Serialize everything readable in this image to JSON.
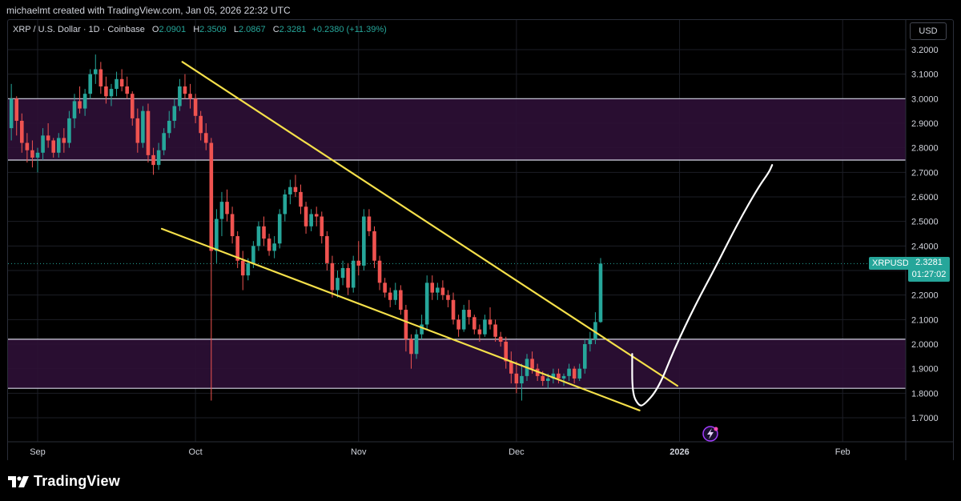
{
  "header": {
    "credit": "michaelmt created with TradingView.com, Jan 05, 2026 22:32 UTC"
  },
  "legend": {
    "symbol": "XRP / U.S. Dollar · 1D · Coinbase",
    "open_label": "O",
    "open": "2.0901",
    "high_label": "H",
    "high": "2.3509",
    "low_label": "L",
    "low": "2.0867",
    "close_label": "C",
    "close": "2.3281",
    "change": "+0.2380 (+11.39%)"
  },
  "price_scale": {
    "currency": "USD"
  },
  "last_price": {
    "ticker": "XRPUSD",
    "price": "2.3281",
    "countdown": "01:27:02"
  },
  "footer": {
    "brand": "TradingView"
  },
  "colors": {
    "up": "#26a69a",
    "down": "#ef5350",
    "trendline": "#f5e04a",
    "zone": "#2d0f36",
    "zone_line": "#d6d6e6",
    "drawing": "#ffffff",
    "grid": "#1c1e26"
  },
  "icons": {
    "brand": "tradingview-logo-icon",
    "event": "lightning-event-icon"
  },
  "chart_data": {
    "type": "candlestick",
    "title": "XRP / U.S. Dollar · 1D · Coinbase",
    "ylim": [
      1.64,
      3.24
    ],
    "y_ticks": [
      "3.2000",
      "3.1000",
      "3.0000",
      "2.9000",
      "2.8000",
      "2.7000",
      "2.6000",
      "2.5000",
      "2.4000",
      "2.3000",
      "2.2000",
      "2.1000",
      "2.0000",
      "1.9000",
      "1.8000",
      "1.7000"
    ],
    "x_labels": [
      {
        "label": "Sep",
        "day": 0
      },
      {
        "label": "Oct",
        "day": 30
      },
      {
        "label": "Nov",
        "day": 61
      },
      {
        "label": "Dec",
        "day": 91
      },
      {
        "label": "2026",
        "day": 122,
        "bold": true
      },
      {
        "label": "Feb",
        "day": 153
      }
    ],
    "zones": [
      [
        2.75,
        3.0
      ],
      [
        1.82,
        2.02
      ]
    ],
    "trendlines": [
      {
        "from": [
          27.5,
          3.15
        ],
        "to": [
          121.6,
          1.83
        ]
      },
      {
        "from": [
          23.6,
          2.47
        ],
        "to": [
          114.4,
          1.73
        ]
      }
    ],
    "projection": [
      [
        113.0,
        1.96
      ],
      [
        113.0,
        1.8
      ],
      [
        114.2,
        1.75
      ],
      [
        115.2,
        1.75
      ],
      [
        118.0,
        1.82
      ],
      [
        121.0,
        1.98
      ],
      [
        125.0,
        2.16
      ],
      [
        129.0,
        2.32
      ],
      [
        133.0,
        2.49
      ],
      [
        137.0,
        2.64
      ],
      [
        139.0,
        2.7
      ],
      [
        139.6,
        2.73
      ]
    ],
    "grid": true,
    "candles": [
      {
        "o": 2.95,
        "h": 3.03,
        "l": 2.75,
        "c": 2.88
      },
      {
        "o": 2.88,
        "h": 3.06,
        "l": 2.83,
        "c": 3.0
      },
      {
        "o": 3.0,
        "h": 3.01,
        "l": 2.85,
        "c": 2.91
      },
      {
        "o": 2.91,
        "h": 2.94,
        "l": 2.78,
        "c": 2.82
      },
      {
        "o": 2.82,
        "h": 2.86,
        "l": 2.74,
        "c": 2.79
      },
      {
        "o": 2.79,
        "h": 2.83,
        "l": 2.72,
        "c": 2.76
      },
      {
        "o": 2.76,
        "h": 2.8,
        "l": 2.7,
        "c": 2.78
      },
      {
        "o": 2.78,
        "h": 2.88,
        "l": 2.75,
        "c": 2.85
      },
      {
        "o": 2.85,
        "h": 2.9,
        "l": 2.8,
        "c": 2.83
      },
      {
        "o": 2.83,
        "h": 2.84,
        "l": 2.76,
        "c": 2.78
      },
      {
        "o": 2.78,
        "h": 2.86,
        "l": 2.76,
        "c": 2.84
      },
      {
        "o": 2.84,
        "h": 2.88,
        "l": 2.78,
        "c": 2.82
      },
      {
        "o": 2.82,
        "h": 2.95,
        "l": 2.8,
        "c": 2.92
      },
      {
        "o": 2.92,
        "h": 3.02,
        "l": 2.88,
        "c": 2.99
      },
      {
        "o": 2.99,
        "h": 3.05,
        "l": 2.94,
        "c": 2.96
      },
      {
        "o": 2.96,
        "h": 3.04,
        "l": 2.93,
        "c": 3.02
      },
      {
        "o": 3.02,
        "h": 3.12,
        "l": 3.0,
        "c": 3.1
      },
      {
        "o": 3.1,
        "h": 3.18,
        "l": 3.06,
        "c": 3.12
      },
      {
        "o": 3.12,
        "h": 3.15,
        "l": 3.02,
        "c": 3.05
      },
      {
        "o": 3.05,
        "h": 3.09,
        "l": 2.98,
        "c": 3.01
      },
      {
        "o": 3.01,
        "h": 3.06,
        "l": 2.97,
        "c": 3.04
      },
      {
        "o": 3.04,
        "h": 3.11,
        "l": 3.01,
        "c": 3.08
      },
      {
        "o": 3.08,
        "h": 3.12,
        "l": 3.03,
        "c": 3.05
      },
      {
        "o": 3.05,
        "h": 3.09,
        "l": 3.0,
        "c": 3.02
      },
      {
        "o": 3.02,
        "h": 3.03,
        "l": 2.89,
        "c": 2.92
      },
      {
        "o": 2.92,
        "h": 2.96,
        "l": 2.78,
        "c": 2.82
      },
      {
        "o": 2.82,
        "h": 2.97,
        "l": 2.8,
        "c": 2.95
      },
      {
        "o": 2.95,
        "h": 2.98,
        "l": 2.74,
        "c": 2.77
      },
      {
        "o": 2.77,
        "h": 2.8,
        "l": 2.69,
        "c": 2.73
      },
      {
        "o": 2.73,
        "h": 2.82,
        "l": 2.71,
        "c": 2.79
      },
      {
        "o": 2.79,
        "h": 2.88,
        "l": 2.77,
        "c": 2.86
      },
      {
        "o": 2.86,
        "h": 2.95,
        "l": 2.84,
        "c": 2.91
      },
      {
        "o": 2.91,
        "h": 3.0,
        "l": 2.88,
        "c": 2.97
      },
      {
        "o": 2.97,
        "h": 3.08,
        "l": 2.95,
        "c": 3.05
      },
      {
        "o": 3.05,
        "h": 3.1,
        "l": 3.0,
        "c": 3.02
      },
      {
        "o": 3.02,
        "h": 3.06,
        "l": 2.96,
        "c": 3.0
      },
      {
        "o": 3.0,
        "h": 3.02,
        "l": 2.9,
        "c": 2.93
      },
      {
        "o": 2.93,
        "h": 2.95,
        "l": 2.83,
        "c": 2.86
      },
      {
        "o": 2.86,
        "h": 2.9,
        "l": 2.79,
        "c": 2.82
      },
      {
        "o": 2.82,
        "h": 2.84,
        "l": 1.77,
        "c": 2.38
      },
      {
        "o": 2.38,
        "h": 2.55,
        "l": 2.33,
        "c": 2.51
      },
      {
        "o": 2.51,
        "h": 2.62,
        "l": 2.44,
        "c": 2.58
      },
      {
        "o": 2.58,
        "h": 2.63,
        "l": 2.5,
        "c": 2.53
      },
      {
        "o": 2.53,
        "h": 2.56,
        "l": 2.41,
        "c": 2.44
      },
      {
        "o": 2.44,
        "h": 2.46,
        "l": 2.31,
        "c": 2.34
      },
      {
        "o": 2.34,
        "h": 2.38,
        "l": 2.22,
        "c": 2.28
      },
      {
        "o": 2.28,
        "h": 2.35,
        "l": 2.26,
        "c": 2.33
      },
      {
        "o": 2.33,
        "h": 2.42,
        "l": 2.31,
        "c": 2.4
      },
      {
        "o": 2.4,
        "h": 2.5,
        "l": 2.38,
        "c": 2.48
      },
      {
        "o": 2.48,
        "h": 2.52,
        "l": 2.4,
        "c": 2.43
      },
      {
        "o": 2.43,
        "h": 2.45,
        "l": 2.36,
        "c": 2.38
      },
      {
        "o": 2.38,
        "h": 2.44,
        "l": 2.35,
        "c": 2.41
      },
      {
        "o": 2.41,
        "h": 2.55,
        "l": 2.39,
        "c": 2.53
      },
      {
        "o": 2.53,
        "h": 2.63,
        "l": 2.5,
        "c": 2.61
      },
      {
        "o": 2.61,
        "h": 2.67,
        "l": 2.57,
        "c": 2.64
      },
      {
        "o": 2.64,
        "h": 2.69,
        "l": 2.6,
        "c": 2.62
      },
      {
        "o": 2.62,
        "h": 2.65,
        "l": 2.53,
        "c": 2.56
      },
      {
        "o": 2.56,
        "h": 2.58,
        "l": 2.45,
        "c": 2.48
      },
      {
        "o": 2.48,
        "h": 2.55,
        "l": 2.46,
        "c": 2.53
      },
      {
        "o": 2.53,
        "h": 2.56,
        "l": 2.48,
        "c": 2.52
      },
      {
        "o": 2.52,
        "h": 2.54,
        "l": 2.41,
        "c": 2.44
      },
      {
        "o": 2.44,
        "h": 2.46,
        "l": 2.3,
        "c": 2.33
      },
      {
        "o": 2.33,
        "h": 2.36,
        "l": 2.19,
        "c": 2.22
      },
      {
        "o": 2.22,
        "h": 2.3,
        "l": 2.19,
        "c": 2.27
      },
      {
        "o": 2.27,
        "h": 2.34,
        "l": 2.24,
        "c": 2.31
      },
      {
        "o": 2.31,
        "h": 2.33,
        "l": 2.2,
        "c": 2.23
      },
      {
        "o": 2.23,
        "h": 2.36,
        "l": 2.21,
        "c": 2.34
      },
      {
        "o": 2.34,
        "h": 2.42,
        "l": 2.28,
        "c": 2.32
      },
      {
        "o": 2.32,
        "h": 2.55,
        "l": 2.3,
        "c": 2.52
      },
      {
        "o": 2.52,
        "h": 2.55,
        "l": 2.44,
        "c": 2.46
      },
      {
        "o": 2.46,
        "h": 2.48,
        "l": 2.31,
        "c": 2.34
      },
      {
        "o": 2.34,
        "h": 2.36,
        "l": 2.22,
        "c": 2.25
      },
      {
        "o": 2.25,
        "h": 2.27,
        "l": 2.19,
        "c": 2.21
      },
      {
        "o": 2.21,
        "h": 2.23,
        "l": 2.15,
        "c": 2.18
      },
      {
        "o": 2.18,
        "h": 2.25,
        "l": 2.16,
        "c": 2.22
      },
      {
        "o": 2.22,
        "h": 2.24,
        "l": 2.12,
        "c": 2.14
      },
      {
        "o": 2.14,
        "h": 2.16,
        "l": 1.97,
        "c": 2.02
      },
      {
        "o": 2.02,
        "h": 2.04,
        "l": 1.9,
        "c": 1.96
      },
      {
        "o": 1.96,
        "h": 2.06,
        "l": 1.94,
        "c": 2.04
      },
      {
        "o": 2.04,
        "h": 2.12,
        "l": 2.02,
        "c": 2.08
      },
      {
        "o": 2.08,
        "h": 2.28,
        "l": 2.06,
        "c": 2.25
      },
      {
        "o": 2.25,
        "h": 2.28,
        "l": 2.18,
        "c": 2.21
      },
      {
        "o": 2.21,
        "h": 2.25,
        "l": 2.18,
        "c": 2.23
      },
      {
        "o": 2.23,
        "h": 2.26,
        "l": 2.18,
        "c": 2.2
      },
      {
        "o": 2.2,
        "h": 2.22,
        "l": 2.15,
        "c": 2.18
      },
      {
        "o": 2.18,
        "h": 2.21,
        "l": 2.08,
        "c": 2.1
      },
      {
        "o": 2.1,
        "h": 2.12,
        "l": 2.03,
        "c": 2.06
      },
      {
        "o": 2.06,
        "h": 2.16,
        "l": 2.05,
        "c": 2.14
      },
      {
        "o": 2.14,
        "h": 2.18,
        "l": 2.08,
        "c": 2.11
      },
      {
        "o": 2.11,
        "h": 2.12,
        "l": 2.04,
        "c": 2.06
      },
      {
        "o": 2.06,
        "h": 2.08,
        "l": 2.01,
        "c": 2.04
      },
      {
        "o": 2.04,
        "h": 2.12,
        "l": 2.03,
        "c": 2.1
      },
      {
        "o": 2.1,
        "h": 2.15,
        "l": 2.06,
        "c": 2.08
      },
      {
        "o": 2.08,
        "h": 2.1,
        "l": 2.01,
        "c": 2.03
      },
      {
        "o": 2.03,
        "h": 2.05,
        "l": 1.99,
        "c": 2.01
      },
      {
        "o": 2.01,
        "h": 2.03,
        "l": 1.9,
        "c": 1.93
      },
      {
        "o": 1.93,
        "h": 1.97,
        "l": 1.84,
        "c": 1.88
      },
      {
        "o": 1.88,
        "h": 1.93,
        "l": 1.8,
        "c": 1.84
      },
      {
        "o": 1.84,
        "h": 1.92,
        "l": 1.77,
        "c": 1.87
      },
      {
        "o": 1.87,
        "h": 1.96,
        "l": 1.85,
        "c": 1.94
      },
      {
        "o": 1.94,
        "h": 1.97,
        "l": 1.88,
        "c": 1.9
      },
      {
        "o": 1.9,
        "h": 1.92,
        "l": 1.85,
        "c": 1.87
      },
      {
        "o": 1.87,
        "h": 1.89,
        "l": 1.83,
        "c": 1.85
      },
      {
        "o": 1.85,
        "h": 1.88,
        "l": 1.82,
        "c": 1.86
      },
      {
        "o": 1.86,
        "h": 1.9,
        "l": 1.84,
        "c": 1.88
      },
      {
        "o": 1.88,
        "h": 1.9,
        "l": 1.84,
        "c": 1.86
      },
      {
        "o": 1.86,
        "h": 1.88,
        "l": 1.83,
        "c": 1.87
      },
      {
        "o": 1.87,
        "h": 1.92,
        "l": 1.85,
        "c": 1.9
      },
      {
        "o": 1.9,
        "h": 1.91,
        "l": 1.84,
        "c": 1.86
      },
      {
        "o": 1.86,
        "h": 1.92,
        "l": 1.85,
        "c": 1.9
      },
      {
        "o": 1.9,
        "h": 2.02,
        "l": 1.88,
        "c": 2.0
      },
      {
        "o": 2.0,
        "h": 2.05,
        "l": 1.97,
        "c": 2.02
      },
      {
        "o": 2.02,
        "h": 2.13,
        "l": 2.0,
        "c": 2.09
      },
      {
        "o": 2.0901,
        "h": 2.3509,
        "l": 2.0867,
        "c": 2.3281
      }
    ]
  }
}
